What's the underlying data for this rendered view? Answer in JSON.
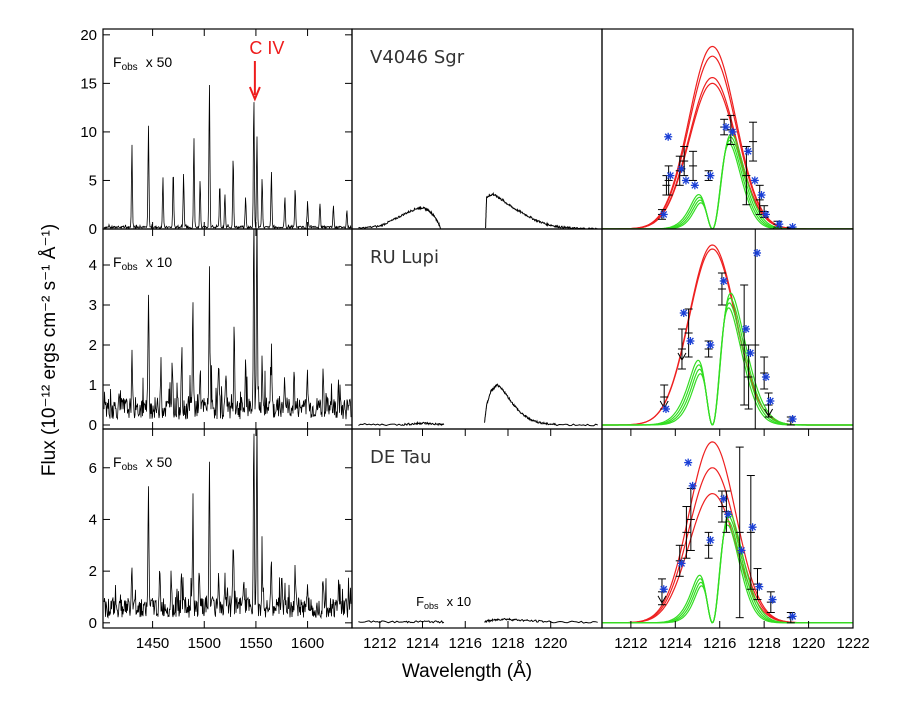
{
  "figure": {
    "ylabel": "Flux (10⁻¹² ergs cm⁻² s⁻¹ Å⁻¹)",
    "xlabel": "Wavelength (Å)",
    "civ_label": "C  IV",
    "colors": {
      "axis": "#000000",
      "spectrum": "#000000",
      "civ_annotation": "#ee1c1c",
      "model_red": "#ee2020",
      "model_green": "#33dd22",
      "data_points": "#1a3fd6"
    }
  },
  "chart_data": [
    {
      "row": 0,
      "col": 0,
      "type": "line",
      "description_label": "Fobs x 50",
      "fobs": {
        "main": "F",
        "sub": "obs",
        "factor": "x  50"
      },
      "xlim": [
        1402,
        1643
      ],
      "ylim": [
        0,
        20.6
      ],
      "xticks": [
        1450,
        1500,
        1550,
        1600
      ],
      "yticks": [
        0,
        5,
        10,
        15,
        20
      ],
      "ytick_labels": [
        "0",
        "5",
        "10",
        "15",
        "20"
      ],
      "lines": [
        [
          1430,
          8.5
        ],
        [
          1446,
          10.5
        ],
        [
          1460,
          5.2
        ],
        [
          1470,
          6.0
        ],
        [
          1480,
          5.5
        ],
        [
          1490,
          9.2
        ],
        [
          1496,
          4.8
        ],
        [
          1505,
          15.0
        ],
        [
          1515,
          4.5
        ],
        [
          1520,
          3.5
        ],
        [
          1528,
          7.5
        ],
        [
          1540,
          3.2
        ],
        [
          1548,
          13.5
        ],
        [
          1551,
          9.5
        ],
        [
          1556,
          5.0
        ],
        [
          1565,
          5.8
        ],
        [
          1578,
          3.2
        ],
        [
          1588,
          4.0
        ],
        [
          1600,
          2.8
        ],
        [
          1612,
          2.5
        ],
        [
          1625,
          2.2
        ],
        [
          1638,
          1.8
        ]
      ],
      "civ_arrow_x": 1549
    },
    {
      "row": 0,
      "col": 1,
      "type": "line",
      "star_name": "V4046 Sgr",
      "xlim": [
        1210.7,
        1222.4
      ],
      "ylim": [
        0,
        20.6
      ],
      "segments": [
        {
          "x": [
            1211.0,
            1212.0,
            1212.6,
            1213.2,
            1213.7,
            1214.0,
            1214.3,
            1214.6,
            1214.85
          ],
          "y": [
            0.05,
            0.3,
            0.9,
            1.6,
            2.1,
            2.2,
            1.9,
            1.2,
            0.1
          ]
        },
        {
          "x": [
            1216.95,
            1217.0,
            1217.3,
            1217.6,
            1217.9,
            1218.3,
            1218.8,
            1219.3,
            1219.8,
            1220.3,
            1220.8,
            1221.3,
            1222.2
          ],
          "y": [
            0.1,
            3.3,
            3.6,
            3.2,
            2.7,
            2.1,
            1.5,
            0.9,
            0.5,
            0.25,
            0.12,
            0.05,
            0.02
          ]
        }
      ]
    },
    {
      "row": 0,
      "col": 2,
      "type": "scatter",
      "xlim": [
        1210.7,
        1222.0
      ],
      "ylim": [
        0,
        20.6
      ],
      "intrinsic_model": {
        "center": 1215.67,
        "sigma": 1.05,
        "amplitudes": [
          15.0,
          15.6,
          17.8,
          18.8
        ]
      },
      "observed_model": {
        "center": 1216.15,
        "sigma": 0.75,
        "amplitudes": [
          10.8
        ],
        "absorption_depth": 1.0,
        "absorption_width": 0.35
      },
      "points": [
        {
          "x": 1213.4,
          "y": 1.5,
          "err": 0.5,
          "star": 1.5
        },
        {
          "x": 1213.6,
          "y": 4.5,
          "err": 1.0,
          "star": 9.5
        },
        {
          "x": 1213.7,
          "y": 5.0,
          "err": 1.5,
          "star": 5.5
        },
        {
          "x": 1214.2,
          "y": 6.0,
          "err": 1.5,
          "star": 6.2
        },
        {
          "x": 1214.4,
          "y": 7.0,
          "err": 1.5,
          "star": 5.0
        },
        {
          "x": 1214.8,
          "y": 6.5,
          "err": 1.5,
          "star": 4.5
        },
        {
          "x": 1215.5,
          "y": 5.5,
          "err": 0.5,
          "star": 5.5
        },
        {
          "x": 1216.2,
          "y": 10.5,
          "err": 0.8,
          "star": 10.5
        },
        {
          "x": 1216.5,
          "y": 10.2,
          "err": 1.5,
          "star": 10.0
        },
        {
          "x": 1217.2,
          "y": 5.5,
          "err": 3.0,
          "star": 8.0
        },
        {
          "x": 1217.5,
          "y": 9.0,
          "err": 2.0,
          "star": 5.0
        },
        {
          "x": 1217.8,
          "y": 3.0,
          "err": 1.5,
          "star": 3.5
        },
        {
          "x": 1218.0,
          "y": 1.8,
          "err": 0.6,
          "star": 1.5
        },
        {
          "x": 1218.6,
          "y": 0.5,
          "err": 0.3,
          "star": 0.5,
          "upper_limit": true
        },
        {
          "x": 1219.2,
          "y": 0.1,
          "err": 0.1,
          "star": 0.2
        }
      ]
    },
    {
      "row": 1,
      "col": 0,
      "type": "line",
      "description_label": "Fobs x 10",
      "fobs": {
        "main": "F",
        "sub": "obs",
        "factor": "x  10"
      },
      "xlim": [
        1402,
        1643
      ],
      "ylim": [
        -0.1,
        4.9
      ],
      "xticks": [
        1450,
        1500,
        1550,
        1600
      ],
      "yticks": [
        0,
        1,
        2,
        3,
        4
      ],
      "ytick_labels": [
        "0",
        "1",
        "2",
        "3",
        "4"
      ],
      "lines": [
        [
          1430,
          1.2
        ],
        [
          1446,
          2.7
        ],
        [
          1458,
          1.2
        ],
        [
          1469,
          1.4
        ],
        [
          1478,
          1.4
        ],
        [
          1489,
          2.6
        ],
        [
          1496,
          1.1
        ],
        [
          1505,
          3.5
        ],
        [
          1514,
          1.4
        ],
        [
          1521,
          1.0
        ],
        [
          1529,
          2.2
        ],
        [
          1540,
          1.0
        ],
        [
          1548,
          4.9
        ],
        [
          1551,
          4.9
        ],
        [
          1556,
          1.5
        ],
        [
          1565,
          1.4
        ],
        [
          1578,
          0.8
        ],
        [
          1587,
          0.9
        ],
        [
          1600,
          0.9
        ],
        [
          1615,
          0.8
        ],
        [
          1630,
          0.7
        ]
      ],
      "baseline": 0.35
    },
    {
      "row": 1,
      "col": 1,
      "type": "line",
      "star_name": "RU Lupi",
      "xlim": [
        1210.7,
        1222.4
      ],
      "ylim": [
        -0.1,
        4.9
      ],
      "segments": [
        {
          "x": [
            1211.0,
            1213.0,
            1213.6,
            1214.0,
            1214.4,
            1215.0
          ],
          "y": [
            0.01,
            0.01,
            0.03,
            0.05,
            0.03,
            0.01
          ]
        },
        {
          "x": [
            1216.9,
            1217.0,
            1217.2,
            1217.5,
            1217.8,
            1218.2,
            1218.6,
            1219.0,
            1219.4,
            1219.8,
            1220.3,
            1222.2
          ],
          "y": [
            0.05,
            0.5,
            0.85,
            1.0,
            0.85,
            0.55,
            0.3,
            0.15,
            0.07,
            0.03,
            0.01,
            0.0
          ]
        }
      ]
    },
    {
      "row": 1,
      "col": 2,
      "type": "scatter",
      "xlim": [
        1210.7,
        1222.0
      ],
      "ylim": [
        -0.1,
        4.9
      ],
      "intrinsic_model": {
        "center": 1215.67,
        "sigma": 1.05,
        "amplitudes": [
          4.4,
          4.5
        ]
      },
      "observed_model": {
        "center": 1216.1,
        "sigma": 0.85,
        "amplitudes": [
          3.5
        ],
        "absorption_depth": 1.0,
        "absorption_width": 0.32
      },
      "points": [
        {
          "x": 1213.5,
          "y": 0.7,
          "err": 0.3,
          "star": 0.4,
          "upper_limit": true
        },
        {
          "x": 1214.3,
          "y": 1.9,
          "err": 0.5,
          "star": 2.8,
          "upper_limit": true
        },
        {
          "x": 1214.6,
          "y": 2.3,
          "err": 0.6,
          "star": 2.1
        },
        {
          "x": 1215.5,
          "y": 1.9,
          "err": 0.2,
          "star": 2.0
        },
        {
          "x": 1216.1,
          "y": 3.4,
          "err": 0.4,
          "star": 3.6
        },
        {
          "x": 1217.1,
          "y": 2.0,
          "err": 1.5,
          "star": 2.4
        },
        {
          "x": 1217.3,
          "y": 1.2,
          "err": 0.8,
          "star": 1.8
        },
        {
          "x": 1217.6,
          "y": 2.0,
          "err": 3.0,
          "star": 4.3
        },
        {
          "x": 1218.0,
          "y": 1.3,
          "err": 0.4,
          "star": 1.2
        },
        {
          "x": 1218.2,
          "y": 0.5,
          "err": 0.3,
          "star": 0.6,
          "upper_limit": true
        },
        {
          "x": 1219.2,
          "y": 0.1,
          "err": 0.1,
          "star": 0.15
        }
      ]
    },
    {
      "row": 2,
      "col": 0,
      "type": "line",
      "description_label": "Fobs x 50",
      "fobs": {
        "main": "F",
        "sub": "obs",
        "factor": "x  50"
      },
      "xlim": [
        1402,
        1643
      ],
      "ylim": [
        -0.2,
        7.5
      ],
      "xticks": [
        1450,
        1500,
        1550,
        1600
      ],
      "xtick_labels": [
        "1450",
        "1500",
        "1550",
        "1600"
      ],
      "yticks": [
        0,
        2,
        4,
        6
      ],
      "ytick_labels": [
        "0",
        "2",
        "4",
        "6"
      ],
      "lines": [
        [
          1430,
          1.5
        ],
        [
          1446,
          4.5
        ],
        [
          1457,
          1.3
        ],
        [
          1468,
          1.4
        ],
        [
          1478,
          1.2
        ],
        [
          1489,
          3.2
        ],
        [
          1495,
          1.2
        ],
        [
          1505,
          5.8
        ],
        [
          1514,
          1.3
        ],
        [
          1520,
          1.2
        ],
        [
          1528,
          2.6
        ],
        [
          1538,
          1.1
        ],
        [
          1548,
          7.5
        ],
        [
          1551,
          7.5
        ],
        [
          1556,
          1.5
        ],
        [
          1565,
          1.7
        ],
        [
          1575,
          1.5
        ],
        [
          1588,
          1.6
        ],
        [
          1600,
          1.2
        ],
        [
          1615,
          1.2
        ],
        [
          1630,
          1.0
        ]
      ],
      "baseline": 0.5
    },
    {
      "row": 2,
      "col": 1,
      "type": "line",
      "star_name": "DE Tau",
      "xlim": [
        1210.7,
        1222.4
      ],
      "ylim": [
        -0.2,
        7.5
      ],
      "xticks": [
        1212,
        1214,
        1216,
        1218,
        1220
      ],
      "xtick_labels": [
        "1212",
        "1214",
        "1216",
        "1218",
        "1220"
      ],
      "fobs": {
        "main": "F",
        "sub": "obs",
        "factor": "x  10"
      },
      "segments": [
        {
          "x": [
            1211.0,
            1213.0,
            1214.0,
            1215.0
          ],
          "y": [
            0.05,
            0.03,
            0.05,
            0.03
          ]
        },
        {
          "x": [
            1216.9,
            1217.3,
            1217.8,
            1218.3,
            1219.0,
            1220.0,
            1222.2
          ],
          "y": [
            0.05,
            0.1,
            0.15,
            0.12,
            0.08,
            0.04,
            0.02
          ]
        }
      ]
    },
    {
      "row": 2,
      "col": 2,
      "type": "scatter",
      "xlim": [
        1210.7,
        1222.0
      ],
      "ylim": [
        -0.2,
        7.5
      ],
      "xticks": [
        1212,
        1214,
        1216,
        1218,
        1220,
        1222
      ],
      "xtick_labels": [
        "1212",
        "1214",
        "1216",
        "1218",
        "1220",
        "1222"
      ],
      "intrinsic_model": {
        "center": 1215.67,
        "sigma": 1.05,
        "amplitudes": [
          5.0,
          6.0,
          7.0
        ]
      },
      "observed_model": {
        "center": 1216.1,
        "sigma": 0.75,
        "amplitudes": [
          4.5
        ],
        "absorption_depth": 1.0,
        "absorption_width": 0.3
      },
      "points": [
        {
          "x": 1213.4,
          "y": 1.2,
          "err": 0.5,
          "star": 1.3,
          "upper_limit": true
        },
        {
          "x": 1214.2,
          "y": 2.4,
          "err": 0.6,
          "star": 2.3
        },
        {
          "x": 1214.5,
          "y": 3.5,
          "err": 1.0,
          "star": 6.2
        },
        {
          "x": 1214.7,
          "y": 4.0,
          "err": 1.2,
          "star": 5.3
        },
        {
          "x": 1215.5,
          "y": 3.0,
          "err": 0.5,
          "star": 3.2
        },
        {
          "x": 1216.1,
          "y": 4.5,
          "err": 0.6,
          "star": 4.8
        },
        {
          "x": 1216.3,
          "y": 4.3,
          "err": 0.8,
          "star": 4.2
        },
        {
          "x": 1216.9,
          "y": 3.5,
          "err": 3.3,
          "star": 2.8
        },
        {
          "x": 1217.4,
          "y": 3.5,
          "err": 2.2,
          "star": 3.7
        },
        {
          "x": 1217.7,
          "y": 1.5,
          "err": 0.6,
          "star": 1.4
        },
        {
          "x": 1218.3,
          "y": 0.8,
          "err": 0.4,
          "star": 0.9
        },
        {
          "x": 1219.2,
          "y": 0.2,
          "err": 0.2,
          "star": 0.25
        }
      ]
    }
  ]
}
